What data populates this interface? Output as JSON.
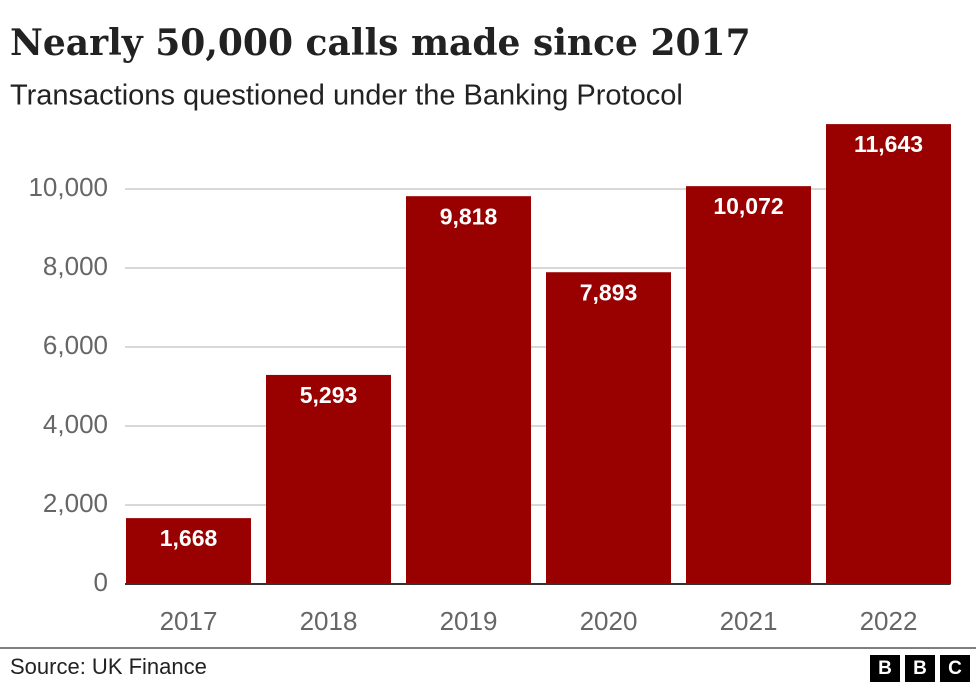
{
  "chart_data": {
    "type": "bar",
    "title": "Nearly 50,000 calls made since 2017",
    "subtitle": "Transactions questioned under the Banking Protocol",
    "categories": [
      "2017",
      "2018",
      "2019",
      "2020",
      "2021",
      "2022"
    ],
    "values": [
      1668,
      5293,
      9818,
      7893,
      10072,
      11643
    ],
    "value_labels": [
      "1,668",
      "5,293",
      "9,818",
      "7,893",
      "10,072",
      "11,643"
    ],
    "color": "#990000",
    "ylim": [
      0,
      12000
    ],
    "yticks": [
      0,
      {
        "value": 2000,
        "label": "2,000"
      },
      {
        "value": 4000,
        "label": "4,000"
      },
      {
        "value": 6000,
        "label": "6,000"
      },
      {
        "value": 8000,
        "label": "8,000"
      },
      {
        "value": 10000,
        "label": "10,000"
      }
    ],
    "grid": true,
    "source": "Source: UK Finance",
    "logo": [
      "B",
      "B",
      "C"
    ]
  }
}
